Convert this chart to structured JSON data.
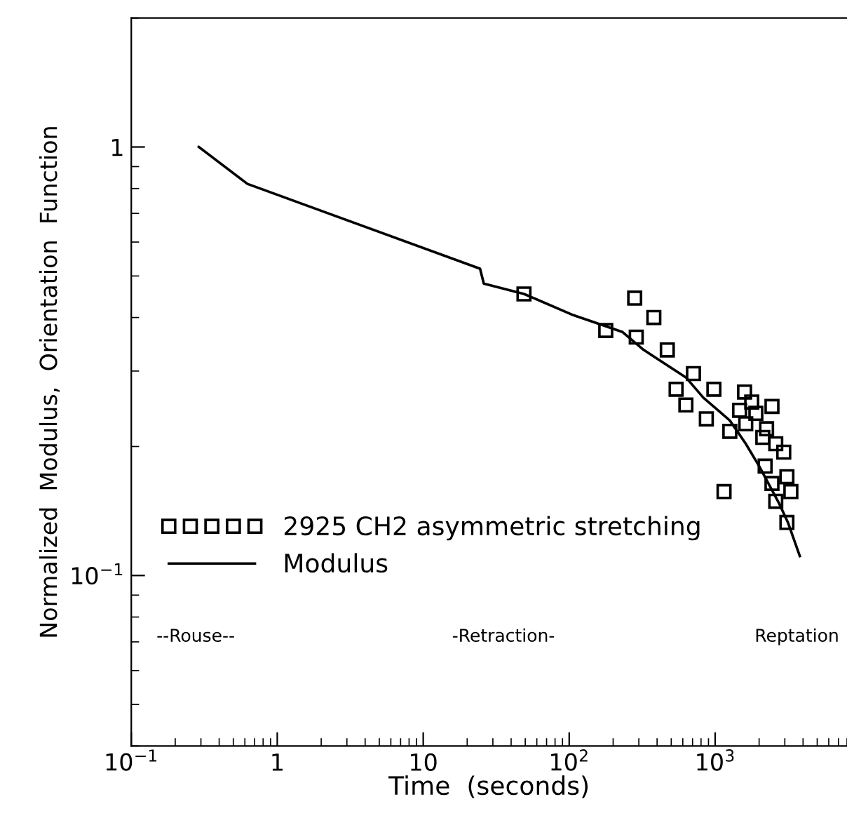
{
  "chart_data": {
    "type": "scatter",
    "xlabel": "Time  (seconds)",
    "ylabel": "Normalized  Modulus,  Orientation  Function",
    "log": "xy",
    "xlim": [
      0.1,
      8000
    ],
    "ylim": [
      0.04,
      2
    ],
    "xticks": [
      {
        "value": 0.1,
        "label": "10$^{−1}$"
      },
      1,
      10,
      {
        "value": 100,
        "label": "10$^{2}$"
      },
      {
        "value": 1000,
        "label": "10$^{3}$"
      }
    ],
    "yticks": [
      {
        "value": 0.1,
        "label": "10$^{−1}$"
      },
      1
    ],
    "grid": false,
    "legend": "bottom left",
    "series": [
      {
        "name": "2925 CH2 asymmetric stretching",
        "marker": "square",
        "color": "#000000",
        "x": [
          49,
          178,
          288,
          281,
          380,
          470,
          710,
          540,
          630,
          870,
          980,
          1150,
          1590,
          2450,
          1260,
          1780,
          1470,
          1900,
          2250,
          2120,
          2600,
          2950,
          2200,
          3100,
          2450,
          3300,
          2600,
          3100,
          1620
        ],
        "values": [
          0.454,
          0.373,
          0.36,
          0.444,
          0.4,
          0.336,
          0.296,
          0.272,
          0.25,
          0.232,
          0.272,
          0.157,
          0.268,
          0.248,
          0.217,
          0.254,
          0.243,
          0.239,
          0.22,
          0.21,
          0.203,
          0.194,
          0.18,
          0.17,
          0.164,
          0.157,
          0.149,
          0.133,
          0.226
        ]
      },
      {
        "name": "Modulus",
        "type": "line",
        "marker": "none",
        "line_style": "solid",
        "color": "#000000",
        "x": [
          0.29,
          0.625,
          24.5,
          26,
          49,
          107,
          232,
          324,
          630,
          830,
          1260,
          1620,
          2000,
          2750,
          3150,
          3800
        ],
        "values": [
          1.0,
          0.82,
          0.52,
          0.48,
          0.454,
          0.405,
          0.37,
          0.336,
          0.29,
          0.26,
          0.23,
          0.203,
          0.18,
          0.147,
          0.133,
          0.111
        ]
      }
    ],
    "annotations": [
      "--Rouse--",
      "-Retraction-",
      "Reptation"
    ]
  }
}
